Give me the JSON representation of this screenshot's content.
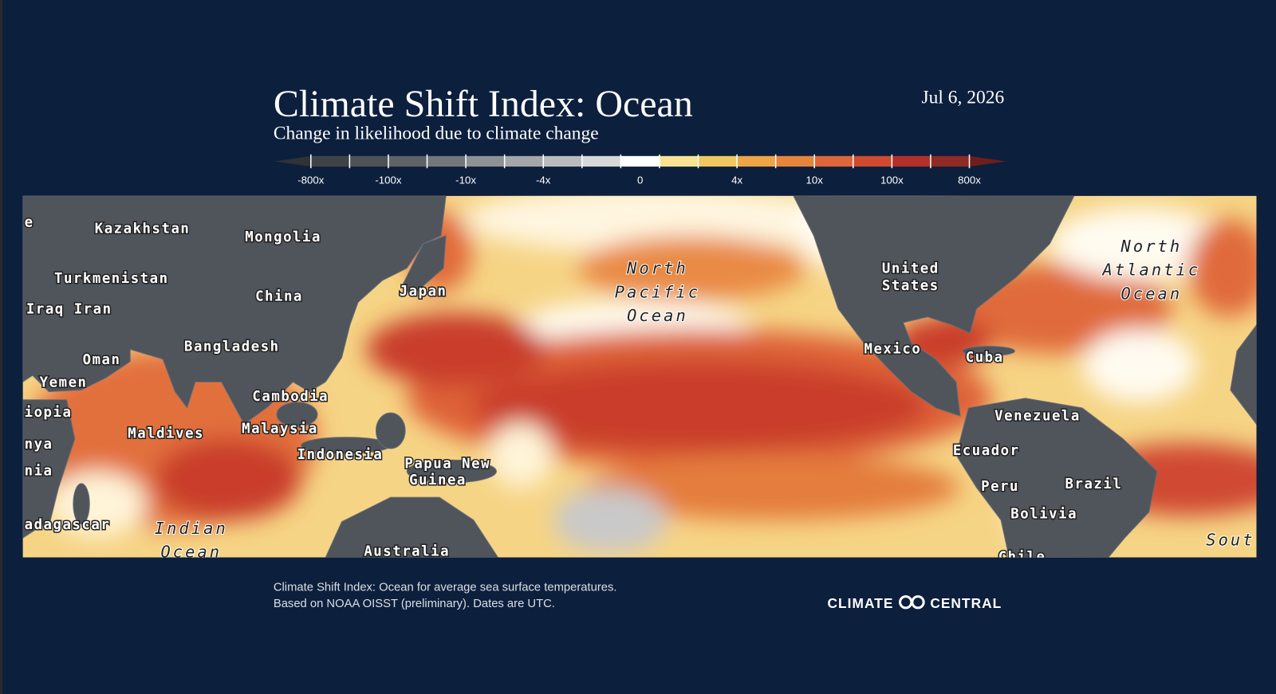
{
  "header": {
    "title": "Climate Shift Index: Ocean",
    "subtitle": "Change in likelihood due to climate change",
    "date": "Jul 6, 2026"
  },
  "legend": {
    "labels": [
      "-800x",
      "-100x",
      "-10x",
      "-4x",
      "0",
      "4x",
      "10x",
      "100x",
      "800x"
    ],
    "colors": [
      "#3f4348",
      "#4e5257",
      "#5f6368",
      "#73777c",
      "#8e9296",
      "#a3a6aa",
      "#b9bcbf",
      "#d6d8da",
      "#ffffff",
      "#f8e394",
      "#f1c85f",
      "#eda545",
      "#e6853b",
      "#de6638",
      "#d04a30",
      "#b3302a",
      "#8f2a24"
    ],
    "low_color": "#2f3236",
    "high_color": "#6e2018"
  },
  "map": {
    "labels": [
      "e",
      "Kazakhstan",
      "Mongolia",
      "Turkmenistan",
      "China",
      "Iraq Iran",
      "Japan",
      "North",
      "Pacific",
      "Ocean",
      "United",
      "States",
      "North",
      "Atlantic",
      "Ocean",
      "Oman",
      "Bangladesh",
      "Mexico",
      "Cuba",
      "Yemen",
      "Cambodia",
      "iopia",
      "Malaysia",
      "Maldives",
      "Venezuela",
      "nya",
      "Indonesia",
      "Papua New",
      "Guinea",
      "Ecuador",
      "nia",
      "Peru",
      "Brazil",
      "Bolivia",
      "adagascar",
      "Indian",
      "Ocean",
      "Australia",
      "Chile",
      "Sout"
    ]
  },
  "footer": {
    "note_lines": [
      "Climate Shift Index: Ocean for average sea surface temperatures.",
      "Based on NOAA OISST (preliminary). Dates are UTC."
    ],
    "logo": [
      "CLIMATE",
      "CENTRAL"
    ]
  }
}
